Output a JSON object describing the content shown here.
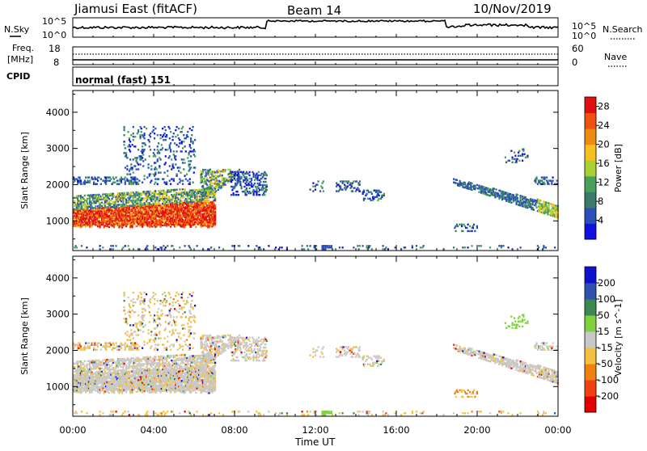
{
  "header": {
    "title": "Jiamusi East (fitACF)",
    "beam": "Beam 14",
    "date": "10/Nov/2019"
  },
  "noise_panel": {
    "left_label": "N.Sky",
    "right_label": "N.Search",
    "left_ticks": [
      "10^5",
      "10^0"
    ],
    "right_ticks": [
      "10^5",
      "10^0"
    ]
  },
  "freq_panel": {
    "left_label_1": "Freq.",
    "left_label_2": "[MHz]",
    "left_ticks": [
      "18",
      "8"
    ],
    "right_label": "Nave",
    "right_ticks": [
      "60",
      "0"
    ]
  },
  "cpid_panel": {
    "label": "CPID",
    "value": "normal (fast) 151"
  },
  "x_axis": {
    "label": "Time UT",
    "ticks": [
      "00:00",
      "04:00",
      "08:00",
      "12:00",
      "16:00",
      "20:00",
      "00:00"
    ]
  },
  "colors": {
    "power": [
      "#1010e0",
      "#2a4fb8",
      "#3a7a6a",
      "#4aa05a",
      "#a8d030",
      "#f5c020",
      "#f08a10",
      "#f05010",
      "#e01010"
    ],
    "velocity": [
      "#e00000",
      "#f04010",
      "#f08010",
      "#f5c040",
      "#c8c8c8",
      "#80d040",
      "#3a8a50",
      "#3050b0",
      "#1010d0"
    ]
  },
  "chart_data": [
    {
      "type": "heatmap",
      "name": "power",
      "ylabel": "Slant Range [km]",
      "xlabel": "",
      "ylim": [
        180,
        4600
      ],
      "y_ticks": [
        "1000",
        "2000",
        "3000",
        "4000"
      ],
      "x_range_hours": [
        0,
        24
      ],
      "colorbar_label": "Power [dB]",
      "colorbar_ticks": [
        "4",
        "8",
        "12",
        "16",
        "20",
        "24",
        "28"
      ],
      "colorbar_range": [
        0,
        30
      ]
    },
    {
      "type": "heatmap",
      "name": "velocity",
      "ylabel": "Slant Range [km]",
      "xlabel": "Time UT",
      "ylim": [
        180,
        4600
      ],
      "y_ticks": [
        "1000",
        "2000",
        "3000",
        "4000"
      ],
      "x_range_hours": [
        0,
        24
      ],
      "colorbar_label": "Velocity [m s^-1]",
      "colorbar_ticks": [
        "200",
        "100",
        "50",
        "15",
        "-15",
        "-50",
        "-100",
        "-200"
      ]
    }
  ]
}
